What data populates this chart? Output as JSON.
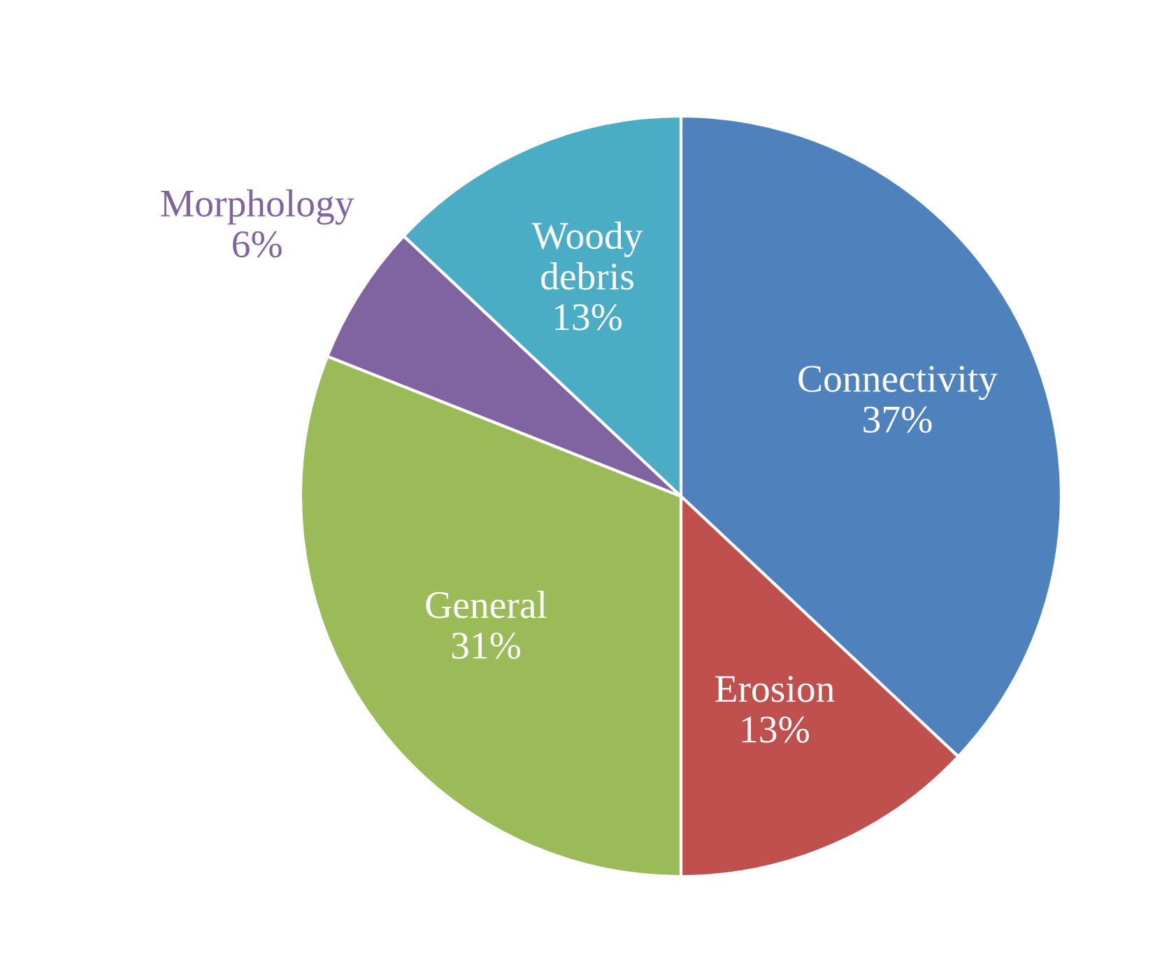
{
  "chart_data": {
    "type": "pie",
    "categories": [
      "Connectivity",
      "Erosion",
      "General",
      "Morphology",
      "Woody debris"
    ],
    "values": [
      37,
      13,
      31,
      6,
      13
    ],
    "value_labels": [
      "37%",
      "13%",
      "31%",
      "6%",
      "13%"
    ],
    "colors": [
      "#4f81bd",
      "#c0504d",
      "#9bbb59",
      "#8064a2",
      "#4bacc6"
    ]
  }
}
